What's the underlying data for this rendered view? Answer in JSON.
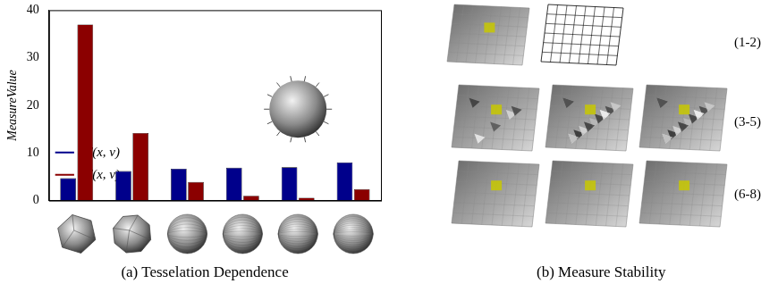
{
  "chart_data": {
    "type": "bar",
    "categories": [
      null,
      null,
      null,
      null,
      null,
      null
    ],
    "series": [
      {
        "name": "dT(x, v)",
        "color": "#00008b",
        "values": [
          4.7,
          6.2,
          6.7,
          6.9,
          7.0,
          8.0
        ]
      },
      {
        "name": "d̄T(x, v)",
        "color": "#8b0000",
        "values": [
          37.0,
          14.2,
          3.9,
          1.0,
          0.6,
          2.4
        ]
      }
    ],
    "ylabel": "MeasureValue",
    "ylim": [
      0,
      40
    ],
    "yticks": [
      0,
      10,
      20,
      30,
      40
    ],
    "grid": false,
    "legend": "top right",
    "tick_labels": "y",
    "caption": "(a) Tesselation Dependence"
  },
  "panel_b": {
    "caption": "(b) Measure Stability",
    "rows": [
      "(1-2)",
      "(3-5)",
      "(6-8)"
    ]
  }
}
